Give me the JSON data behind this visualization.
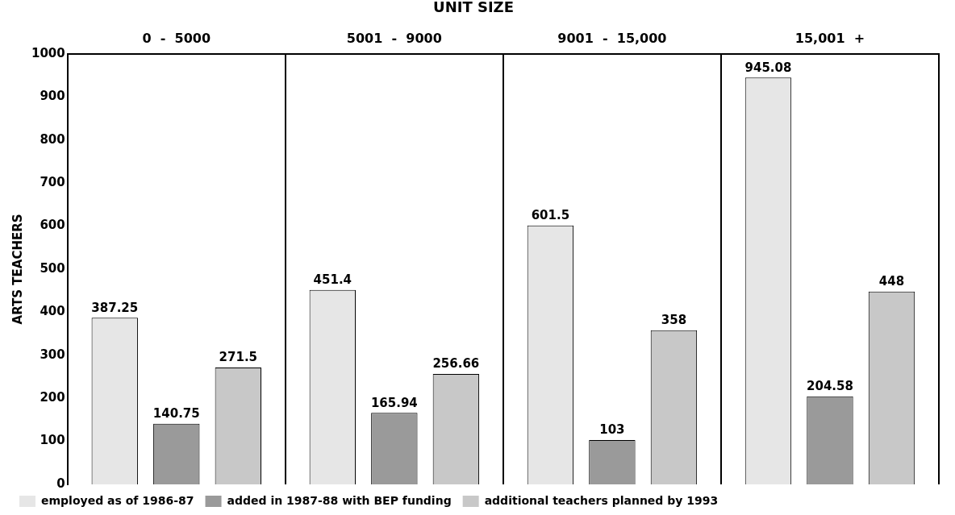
{
  "chart_data": {
    "type": "bar",
    "title": "UNIT SIZE",
    "ylabel": "ARTS TEACHERS",
    "categories": [
      "0  -  5000",
      "5001  -  9000",
      "9001  -  15,000",
      "15,001  +"
    ],
    "series": [
      {
        "name": "employed as of 1986-87",
        "color": "#e6e6e6",
        "values": [
          387.25,
          451.4,
          601.5,
          945.08
        ]
      },
      {
        "name": "added in 1987-88 with BEP funding",
        "color": "#9a9a9a",
        "values": [
          140.75,
          165.94,
          103,
          204.58
        ]
      },
      {
        "name": "additional teachers planned by 1993",
        "color": "#c8c8c8",
        "values": [
          271.5,
          256.66,
          358,
          448
        ]
      }
    ],
    "ylim": [
      0,
      1000
    ],
    "yticks": [
      0,
      100,
      200,
      300,
      400,
      500,
      600,
      700,
      800,
      900,
      1000
    ],
    "grid": "x",
    "legend": "bottom left",
    "data_labels": true
  }
}
